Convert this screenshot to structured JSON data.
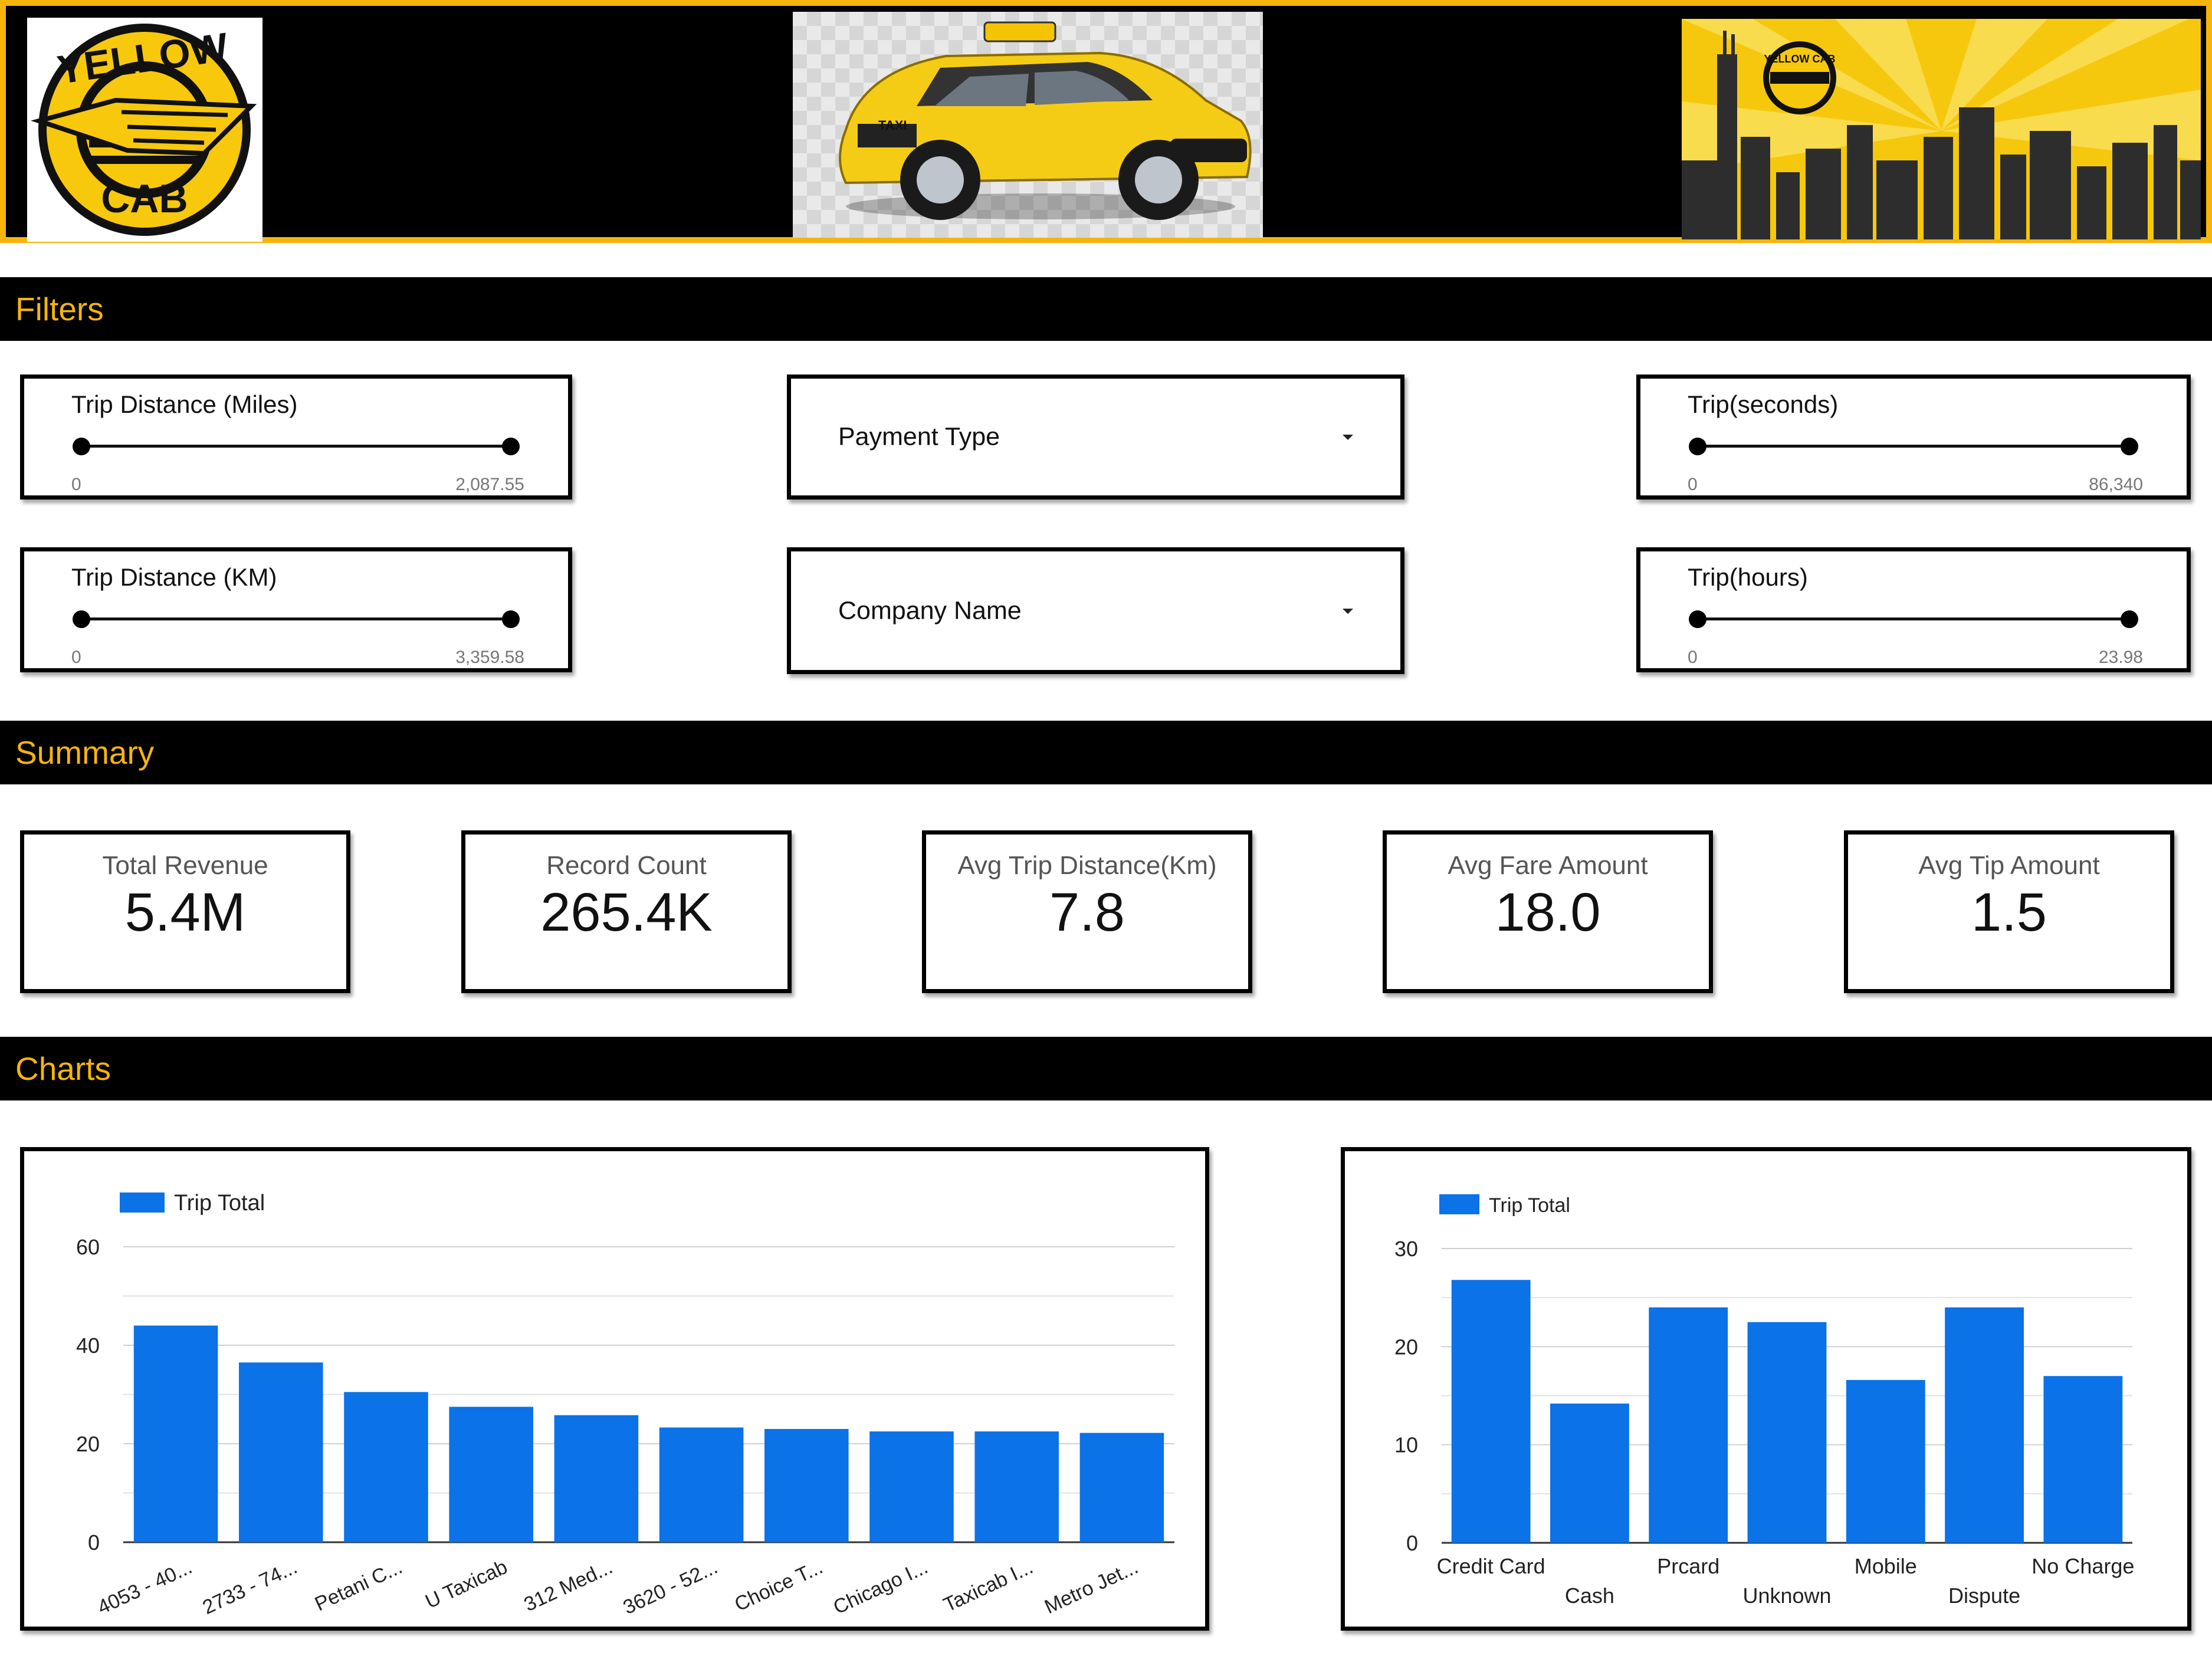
{
  "header": {
    "logo_text_top": "YELLOW",
    "logo_text_bottom": "CAB",
    "car_plate_text": "TAXI",
    "city_logo_text": "YELLOW CAB"
  },
  "sections": {
    "filters": "Filters",
    "summary": "Summary",
    "charts": "Charts"
  },
  "filters": {
    "trip_miles": {
      "title": "Trip Distance (Miles)",
      "min": "0",
      "max": "2,087.55"
    },
    "trip_km": {
      "title": "Trip Distance (KM)",
      "min": "0",
      "max": "3,359.58"
    },
    "payment_type": {
      "label": "Payment Type"
    },
    "company_name": {
      "label": "Company Name"
    },
    "trip_seconds": {
      "title": "Trip(seconds)",
      "min": "0",
      "max": "86,340"
    },
    "trip_hours": {
      "title": "Trip(hours)",
      "min": "0",
      "max": "23.98"
    }
  },
  "summary": {
    "total_revenue": {
      "label": "Total Revenue",
      "value": "5.4M"
    },
    "record_count": {
      "label": "Record Count",
      "value": "265.4K"
    },
    "avg_trip_distance": {
      "label": "Avg Trip Distance(Km)",
      "value": "7.8"
    },
    "avg_fare_amount": {
      "label": "Avg Fare Amount",
      "value": "18.0"
    },
    "avg_tip_amount": {
      "label": "Avg Tip Amount",
      "value": "1.5"
    }
  },
  "colors": {
    "accent_yellow": "#f5b50b",
    "bar_blue": "#0b72e7",
    "banner_black": "#000000"
  },
  "chart_data": [
    {
      "type": "bar",
      "categories": [
        "4053 - 40...",
        "2733 - 74...",
        "Petani C...",
        "U Taxicab",
        "312 Med...",
        "3620 - 52...",
        "Choice T...",
        "Chicago I...",
        "Taxicab I...",
        "Metro Jet..."
      ],
      "series": [
        {
          "name": "Trip Total",
          "values": [
            44,
            36.5,
            30.5,
            27.5,
            25.8,
            23.3,
            23,
            22.5,
            22.5,
            22.2
          ]
        }
      ],
      "yticks": [
        "0",
        "20",
        "40",
        "60"
      ],
      "ylim": [
        0,
        60
      ],
      "grid": true,
      "legend": "top-left"
    },
    {
      "type": "bar",
      "categories": [
        "Credit Card",
        "Cash",
        "Prcard",
        "Unknown",
        "Mobile",
        "Dispute",
        "No Charge"
      ],
      "series": [
        {
          "name": "Trip Total",
          "values": [
            26.8,
            14.2,
            24,
            22.5,
            16.6,
            24,
            17
          ]
        }
      ],
      "yticks": [
        "0",
        "10",
        "20",
        "30"
      ],
      "ylim": [
        0,
        30
      ],
      "grid": true,
      "legend": "top-left"
    }
  ]
}
